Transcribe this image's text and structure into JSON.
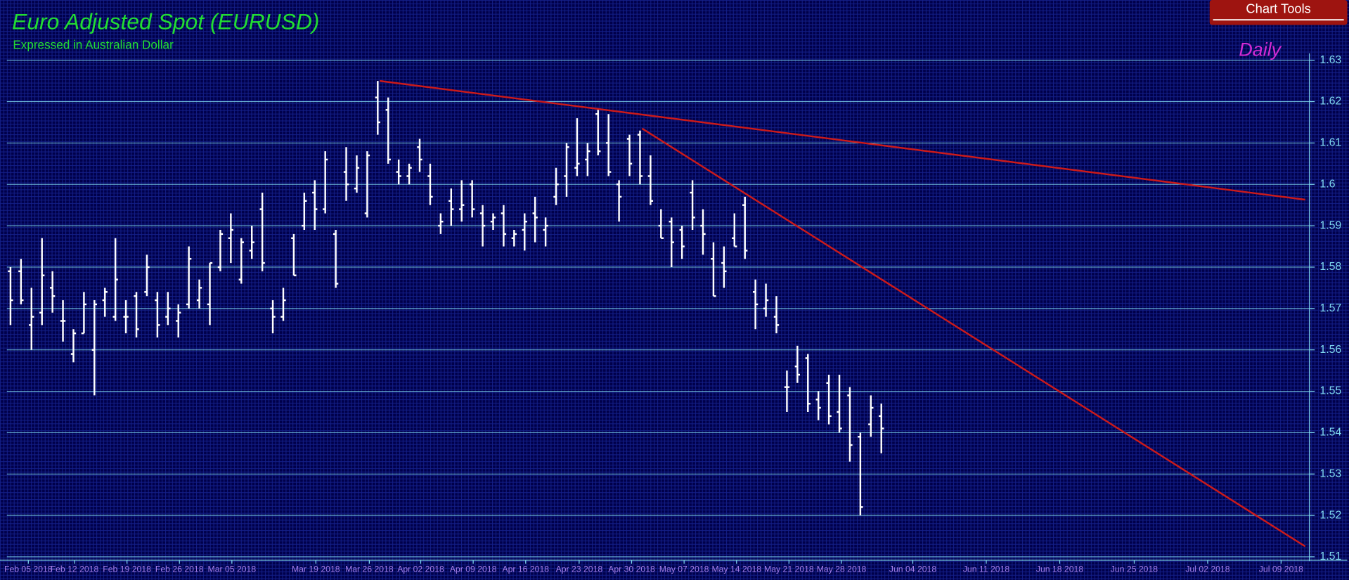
{
  "toolbar": {
    "button": "Chart Tools"
  },
  "chart_data": {
    "type": "ohlc",
    "title": "Euro Adjusted Spot (EURUSD)",
    "subtitle": "Expressed in Australian Dollar",
    "timeframe": "Daily",
    "color": "#ffffff",
    "grid": true,
    "ylim": [
      1.51,
      1.63
    ],
    "yticks": [
      1.51,
      1.52,
      1.53,
      1.54,
      1.55,
      1.56,
      1.57,
      1.58,
      1.59,
      1.6,
      1.61,
      1.62,
      1.63
    ],
    "xlim": [
      -1,
      123.8
    ],
    "xticks": [
      {
        "value": 1.7,
        "label": "Feb 05 2018"
      },
      {
        "value": 6.1,
        "label": "Feb 12 2018"
      },
      {
        "value": 11.1,
        "label": "Feb 19 2018"
      },
      {
        "value": 16.1,
        "label": "Feb 26 2018"
      },
      {
        "value": 21.1,
        "label": "Mar 05 2018"
      },
      {
        "value": 29.1,
        "label": "Mar 19 2018"
      },
      {
        "value": 34.2,
        "label": "Mar 26 2018"
      },
      {
        "value": 39.1,
        "label": "Apr 02 2018"
      },
      {
        "value": 44.1,
        "label": "Apr 09 2018"
      },
      {
        "value": 49.1,
        "label": "Apr 16 2018"
      },
      {
        "value": 54.2,
        "label": "Apr 23 2018"
      },
      {
        "value": 59.2,
        "label": "Apr 30 2018"
      },
      {
        "value": 64.2,
        "label": "May 07 2018"
      },
      {
        "value": 69.2,
        "label": "May 14 2018"
      },
      {
        "value": 74.2,
        "label": "May 21 2018"
      },
      {
        "value": 79.2,
        "label": "May 28 2018"
      },
      {
        "value": 86.0,
        "label": "Jun 04 2018"
      },
      {
        "value": 93.0,
        "label": "Jun 11 2018"
      },
      {
        "value": 100.0,
        "label": "Jun 18 2018"
      },
      {
        "value": 107.1,
        "label": "Jun 25 2018"
      },
      {
        "value": 114.1,
        "label": "Jul 02 2018"
      },
      {
        "value": 121.1,
        "label": "Jul 09 2018"
      }
    ],
    "open": [
      1.579,
      1.579,
      1.566,
      1.569,
      1.575,
      1.567,
      1.559,
      1.564,
      1.56,
      1.572,
      1.568,
      1.568,
      1.573,
      1.574,
      1.572,
      1.568,
      1.567,
      1.571,
      1.572,
      1.571,
      1.58,
      1.587,
      1.577,
      1.584,
      1.594,
      1.57,
      1.568,
      1.587,
      1.59,
      1.598,
      1.594,
      1.588,
      1.603,
      1.599,
      1.593,
      1.621,
      1.618,
      1.603,
      1.602,
      1.609,
      1.602,
      1.59,
      1.596,
      1.594,
      1.6,
      1.593,
      1.591,
      1.593,
      1.587,
      1.589,
      1.593,
      1.589,
      1.597,
      1.602,
      1.604,
      1.606,
      1.617,
      1.61,
      1.6,
      1.611,
      1.612,
      1.602,
      1.59,
      1.591,
      1.589,
      1.598,
      1.59,
      1.582,
      1.581,
      1.587,
      1.595,
      1.574,
      1.57,
      1.568,
      1.551,
      1.556,
      1.558,
      1.548,
      1.552,
      1.545,
      1.549,
      1.539,
      1.542,
      1.544
    ],
    "high": [
      1.58,
      1.582,
      1.575,
      1.587,
      1.579,
      1.572,
      1.565,
      1.574,
      1.572,
      1.575,
      1.587,
      1.572,
      1.574,
      1.583,
      1.574,
      1.574,
      1.571,
      1.585,
      1.577,
      1.581,
      1.589,
      1.593,
      1.587,
      1.59,
      1.598,
      1.572,
      1.575,
      1.588,
      1.598,
      1.601,
      1.608,
      1.589,
      1.609,
      1.607,
      1.608,
      1.625,
      1.621,
      1.606,
      1.605,
      1.611,
      1.605,
      1.593,
      1.599,
      1.601,
      1.601,
      1.595,
      1.593,
      1.595,
      1.589,
      1.593,
      1.597,
      1.592,
      1.604,
      1.61,
      1.616,
      1.61,
      1.618,
      1.617,
      1.601,
      1.612,
      1.613,
      1.607,
      1.594,
      1.592,
      1.59,
      1.601,
      1.594,
      1.586,
      1.585,
      1.593,
      1.597,
      1.577,
      1.576,
      1.573,
      1.555,
      1.561,
      1.559,
      1.55,
      1.554,
      1.554,
      1.551,
      1.54,
      1.549,
      1.547
    ],
    "low": [
      1.566,
      1.571,
      1.56,
      1.566,
      1.569,
      1.562,
      1.557,
      1.564,
      1.549,
      1.568,
      1.567,
      1.564,
      1.563,
      1.573,
      1.563,
      1.566,
      1.563,
      1.57,
      1.57,
      1.566,
      1.579,
      1.581,
      1.576,
      1.582,
      1.579,
      1.564,
      1.567,
      1.578,
      1.589,
      1.589,
      1.593,
      1.575,
      1.596,
      1.598,
      1.592,
      1.612,
      1.605,
      1.6,
      1.6,
      1.603,
      1.595,
      1.588,
      1.59,
      1.591,
      1.592,
      1.585,
      1.589,
      1.585,
      1.585,
      1.584,
      1.586,
      1.585,
      1.595,
      1.597,
      1.602,
      1.602,
      1.607,
      1.602,
      1.591,
      1.602,
      1.6,
      1.595,
      1.587,
      1.58,
      1.582,
      1.589,
      1.583,
      1.573,
      1.575,
      1.585,
      1.582,
      1.565,
      1.568,
      1.564,
      1.545,
      1.552,
      1.545,
      1.543,
      1.542,
      1.54,
      1.533,
      1.52,
      1.539,
      1.535
    ],
    "close": [
      1.572,
      1.572,
      1.568,
      1.578,
      1.573,
      1.567,
      1.564,
      1.571,
      1.571,
      1.574,
      1.577,
      1.568,
      1.565,
      1.58,
      1.566,
      1.57,
      1.569,
      1.582,
      1.575,
      1.581,
      1.588,
      1.589,
      1.586,
      1.586,
      1.581,
      1.568,
      1.572,
      1.578,
      1.596,
      1.594,
      1.606,
      1.576,
      1.6,
      1.604,
      1.607,
      1.615,
      1.606,
      1.602,
      1.604,
      1.606,
      1.597,
      1.591,
      1.594,
      1.595,
      1.594,
      1.59,
      1.592,
      1.588,
      1.588,
      1.591,
      1.592,
      1.59,
      1.6,
      1.609,
      1.605,
      1.608,
      1.608,
      1.603,
      1.597,
      1.605,
      1.602,
      1.596,
      1.587,
      1.586,
      1.585,
      1.592,
      1.588,
      1.573,
      1.579,
      1.585,
      1.584,
      1.571,
      1.572,
      1.566,
      1.551,
      1.554,
      1.547,
      1.546,
      1.544,
      1.541,
      1.537,
      1.522,
      1.546,
      1.541
    ],
    "trendlines": [
      {
        "color": "#cc1a1a",
        "x": [
          35.2,
          123.4
        ],
        "y": [
          1.625,
          1.5963
        ]
      },
      {
        "color": "#cc1a1a",
        "x": [
          60.2,
          123.4
        ],
        "y": [
          1.6135,
          1.5125
        ]
      }
    ],
    "axis_color": "#7fd8f0",
    "tick_label_color": "#a37de6"
  }
}
